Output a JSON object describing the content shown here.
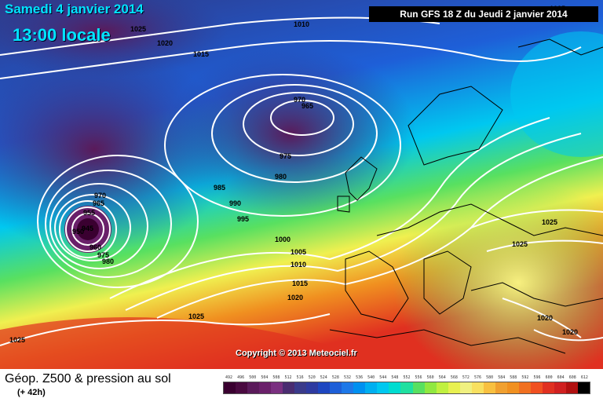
{
  "header": {
    "date": "Samedi 4 janvier 2014",
    "local_time": "13:00 locale",
    "run_info": "Run GFS 18 Z du Jeudi 2 janvier 2014"
  },
  "map": {
    "copyright": "Copyright © 2013 Meteociel.fr",
    "colors": {
      "deep_purple": "#5a1a5a",
      "navy": "#2e3a8a",
      "blue": "#1e5fd8",
      "cyan": "#00c8f0",
      "green": "#58e060",
      "yellow": "#f0f050",
      "orange": "#f09020",
      "red": "#e03020",
      "isobar": "#ffffff",
      "coast": "#000000"
    },
    "isobar_labels": [
      "1025",
      "1020",
      "1015",
      "1010",
      "970",
      "965",
      "975",
      "980",
      "985",
      "990",
      "995",
      "1000",
      "1005",
      "1010",
      "1015",
      "1020",
      "1025",
      "970",
      "965",
      "955",
      "945",
      "950",
      "960",
      "975",
      "980",
      "1025",
      "1025",
      "1025",
      "1025",
      "1020",
      "1020"
    ]
  },
  "footer": {
    "title": "Géop. Z500 & pression au sol",
    "subtitle": "(+ 42h)",
    "scale_ticks": [
      "492",
      "496",
      "500",
      "504",
      "508",
      "512",
      "516",
      "520",
      "524",
      "528",
      "532",
      "536",
      "540",
      "544",
      "548",
      "552",
      "556",
      "560",
      "564",
      "568",
      "572",
      "576",
      "580",
      "584",
      "588",
      "592",
      "596",
      "600",
      "604",
      "608",
      "612"
    ],
    "scale_colors": [
      "#3a0030",
      "#4a0a40",
      "#5a1a5a",
      "#6a206a",
      "#7a3080",
      "#4a2c70",
      "#3a3a8a",
      "#2e3aa0",
      "#1e46c0",
      "#1e5fd8",
      "#1e78e8",
      "#0090f0",
      "#00aff0",
      "#00c8f0",
      "#00dcd0",
      "#20e0a0",
      "#58e060",
      "#90e840",
      "#c0f040",
      "#e8f050",
      "#f0f080",
      "#f8e060",
      "#f8c040",
      "#f0a030",
      "#f09020",
      "#f07020",
      "#f05020",
      "#e03020",
      "#d02020",
      "#b01010",
      "#000000"
    ]
  }
}
